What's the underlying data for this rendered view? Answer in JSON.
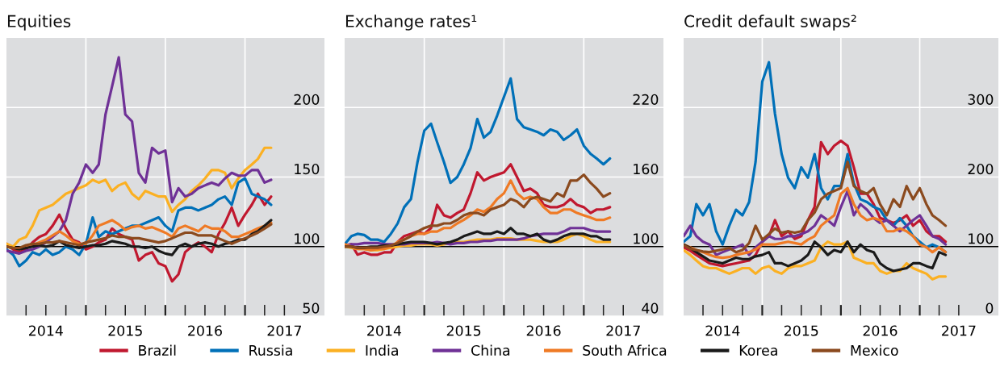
{
  "chart_data": [
    {
      "type": "line",
      "title": "Equities",
      "xlim": [
        "2014-01-01",
        "2018-01-01"
      ],
      "ylim": [
        50,
        250
      ],
      "yticks": [
        50,
        100,
        150,
        200
      ],
      "grid": true,
      "legend": "bottom",
      "line_style": "solid",
      "xticks": [
        {
          "value": "2014-04-01",
          "label": null
        },
        {
          "value": "2014-07-01",
          "label": "2014"
        },
        {
          "value": "2014-10-01",
          "label": null
        },
        {
          "value": "2015-01-01",
          "label": null
        },
        {
          "value": "2015-04-01",
          "label": null
        },
        {
          "value": "2015-07-01",
          "label": "2015"
        },
        {
          "value": "2015-10-01",
          "label": null
        },
        {
          "value": "2016-01-01",
          "label": null
        },
        {
          "value": "2016-04-01",
          "label": null
        },
        {
          "value": "2016-07-01",
          "label": "2016"
        },
        {
          "value": "2016-10-01",
          "label": null
        },
        {
          "value": "2017-01-01",
          "label": null
        },
        {
          "value": "2017-04-01",
          "label": null
        },
        {
          "value": "2017-07-01",
          "label": "2017"
        }
      ],
      "ref_lines": [
        {
          "axis": "y",
          "value": 100,
          "color": "#000000"
        }
      ],
      "x": [
        "2014-01",
        "2014-02",
        "2014-03",
        "2014-04",
        "2014-05",
        "2014-06",
        "2014-07",
        "2014-08",
        "2014-09",
        "2014-10",
        "2014-11",
        "2014-12",
        "2015-01",
        "2015-02",
        "2015-03",
        "2015-04",
        "2015-05",
        "2015-06",
        "2015-07",
        "2015-08",
        "2015-09",
        "2015-10",
        "2015-11",
        "2015-12",
        "2016-01",
        "2016-02",
        "2016-03",
        "2016-04",
        "2016-05",
        "2016-06",
        "2016-07",
        "2016-08",
        "2016-09",
        "2016-10",
        "2016-11",
        "2016-12",
        "2017-01",
        "2017-02",
        "2017-03",
        "2017-04",
        "2017-05"
      ],
      "series": [
        {
          "name": "Brazil",
          "color": "#c0182f",
          "values": [
            102,
            98,
            96,
            98,
            103,
            107,
            109,
            115,
            123,
            113,
            105,
            103,
            98,
            100,
            103,
            105,
            113,
            109,
            107,
            105,
            90,
            94,
            96,
            88,
            86,
            75,
            80,
            96,
            100,
            103,
            100,
            96,
            109,
            117,
            128,
            115,
            123,
            130,
            138,
            130,
            136
          ]
        },
        {
          "name": "Russia",
          "color": "#0070b8",
          "values": [
            98,
            94,
            86,
            90,
            96,
            94,
            98,
            94,
            96,
            100,
            98,
            94,
            102,
            121,
            107,
            111,
            109,
            111,
            113,
            115,
            115,
            117,
            119,
            121,
            115,
            111,
            126,
            128,
            128,
            126,
            128,
            130,
            134,
            136,
            130,
            146,
            149,
            138,
            136,
            134,
            130
          ]
        },
        {
          "name": "India",
          "color": "#fbb022",
          "values": [
            102,
            100,
            105,
            107,
            115,
            126,
            128,
            130,
            134,
            138,
            140,
            142,
            144,
            148,
            146,
            148,
            140,
            144,
            146,
            138,
            134,
            140,
            138,
            136,
            136,
            125,
            130,
            134,
            140,
            144,
            149,
            155,
            155,
            153,
            142,
            149,
            155,
            159,
            163,
            171,
            171
          ]
        },
        {
          "name": "China",
          "color": "#6f3196",
          "values": [
            97,
            96,
            95,
            97,
            98,
            100,
            103,
            107,
            111,
            119,
            138,
            146,
            159,
            153,
            159,
            195,
            215,
            236,
            195,
            190,
            153,
            146,
            171,
            167,
            169,
            132,
            142,
            136,
            138,
            142,
            144,
            146,
            144,
            149,
            153,
            151,
            151,
            155,
            155,
            146,
            148
          ]
        },
        {
          "name": "South Africa",
          "color": "#ef7a25",
          "values": [
            100,
            99,
            98,
            100,
            101,
            103,
            105,
            108,
            111,
            108,
            104,
            102,
            102,
            108,
            115,
            117,
            119,
            116,
            112,
            114,
            115,
            113,
            114,
            112,
            110,
            107,
            113,
            115,
            113,
            111,
            115,
            113,
            113,
            111,
            107,
            107,
            109,
            111,
            113,
            115,
            117
          ]
        },
        {
          "name": "Korea",
          "color": "#1a1a1a",
          "values": [
            100,
            99,
            98,
            99,
            100,
            101,
            100,
            101,
            104,
            101,
            100,
            99,
            100,
            101,
            101,
            102,
            104,
            103,
            102,
            100,
            100,
            99,
            100,
            97,
            95,
            94,
            100,
            102,
            100,
            102,
            103,
            102,
            100,
            102,
            103,
            105,
            105,
            109,
            111,
            115,
            119
          ]
        },
        {
          "name": "Mexico",
          "color": "#8b4a1e",
          "values": [
            100,
            99,
            99,
            101,
            102,
            102,
            103,
            103,
            104,
            103,
            102,
            101,
            103,
            104,
            105,
            106,
            108,
            107,
            107,
            106,
            106,
            105,
            104,
            103,
            104,
            106,
            108,
            110,
            110,
            108,
            108,
            108,
            106,
            104,
            102,
            104,
            106,
            108,
            110,
            113,
            116
          ]
        }
      ]
    },
    {
      "type": "line",
      "title": "Exchange rates¹",
      "xlim": [
        "2014-01-01",
        "2018-01-01"
      ],
      "ylim": [
        40,
        280
      ],
      "yticks": [
        40,
        100,
        160,
        220
      ],
      "grid": true,
      "legend": "bottom",
      "line_style": "solid",
      "xticks": [
        {
          "value": "2014-04-01",
          "label": null
        },
        {
          "value": "2014-07-01",
          "label": "2014"
        },
        {
          "value": "2014-10-01",
          "label": null
        },
        {
          "value": "2015-01-01",
          "label": null
        },
        {
          "value": "2015-04-01",
          "label": null
        },
        {
          "value": "2015-07-01",
          "label": "2015"
        },
        {
          "value": "2015-10-01",
          "label": null
        },
        {
          "value": "2016-01-01",
          "label": null
        },
        {
          "value": "2016-04-01",
          "label": null
        },
        {
          "value": "2016-07-01",
          "label": "2016"
        },
        {
          "value": "2016-10-01",
          "label": null
        },
        {
          "value": "2017-01-01",
          "label": null
        },
        {
          "value": "2017-04-01",
          "label": null
        },
        {
          "value": "2017-07-01",
          "label": "2017"
        }
      ],
      "ref_lines": [
        {
          "axis": "y",
          "value": 100,
          "color": "#000000"
        }
      ],
      "x": [
        "2014-01",
        "2014-02",
        "2014-03",
        "2014-04",
        "2014-05",
        "2014-06",
        "2014-07",
        "2014-08",
        "2014-09",
        "2014-10",
        "2014-11",
        "2014-12",
        "2015-01",
        "2015-02",
        "2015-03",
        "2015-04",
        "2015-05",
        "2015-06",
        "2015-07",
        "2015-08",
        "2015-09",
        "2015-10",
        "2015-11",
        "2015-12",
        "2016-01",
        "2016-02",
        "2016-03",
        "2016-04",
        "2016-05",
        "2016-06",
        "2016-07",
        "2016-08",
        "2016-09",
        "2016-10",
        "2016-11",
        "2016-12",
        "2017-01",
        "2017-02",
        "2017-03",
        "2017-04",
        "2017-05"
      ],
      "series": [
        {
          "name": "Brazil",
          "color": "#c0182f",
          "values": [
            100,
            102,
            93,
            95,
            93,
            93,
            95,
            95,
            104,
            109,
            111,
            113,
            111,
            116,
            136,
            127,
            125,
            129,
            132,
            146,
            164,
            157,
            160,
            162,
            164,
            171,
            160,
            148,
            150,
            146,
            136,
            134,
            134,
            136,
            141,
            136,
            134,
            129,
            132,
            132,
            134
          ]
        },
        {
          "name": "Russia",
          "color": "#0070b8",
          "values": [
            102,
            109,
            111,
            110,
            106,
            106,
            104,
            111,
            120,
            134,
            141,
            173,
            200,
            206,
            190,
            173,
            155,
            160,
            171,
            185,
            210,
            194,
            199,
            213,
            229,
            245,
            210,
            203,
            201,
            199,
            196,
            201,
            199,
            192,
            196,
            201,
            187,
            180,
            176,
            171,
            176
          ]
        },
        {
          "name": "India",
          "color": "#fbb022",
          "values": [
            100,
            99,
            98,
            98,
            97,
            97,
            98,
            99,
            100,
            101,
            101,
            102,
            102,
            102,
            101,
            102,
            103,
            104,
            104,
            105,
            106,
            106,
            106,
            107,
            107,
            107,
            106,
            106,
            106,
            105,
            104,
            104,
            104,
            106,
            109,
            111,
            109,
            106,
            104,
            104,
            104
          ]
        },
        {
          "name": "China",
          "color": "#6f3196",
          "values": [
            101,
            102,
            102,
            103,
            103,
            103,
            102,
            102,
            102,
            102,
            103,
            103,
            103,
            103,
            104,
            103,
            102,
            103,
            103,
            104,
            104,
            105,
            105,
            106,
            106,
            106,
            106,
            107,
            109,
            110,
            111,
            111,
            111,
            113,
            116,
            116,
            116,
            114,
            113,
            113,
            113
          ]
        },
        {
          "name": "South Africa",
          "color": "#ef7a25",
          "values": [
            102,
            100,
            98,
            98,
            97,
            98,
            98,
            100,
            104,
            106,
            109,
            111,
            111,
            113,
            113,
            116,
            116,
            120,
            123,
            127,
            132,
            130,
            134,
            141,
            146,
            157,
            146,
            141,
            143,
            141,
            134,
            129,
            129,
            132,
            132,
            129,
            127,
            125,
            123,
            123,
            125
          ]
        },
        {
          "name": "Korea",
          "color": "#1a1a1a",
          "values": [
            100,
            100,
            99,
            99,
            100,
            100,
            101,
            101,
            102,
            103,
            104,
            104,
            104,
            103,
            102,
            103,
            104,
            106,
            109,
            111,
            113,
            111,
            111,
            113,
            111,
            116,
            111,
            111,
            109,
            111,
            106,
            104,
            106,
            109,
            111,
            111,
            111,
            109,
            109,
            106,
            106
          ]
        },
        {
          "name": "Mexico",
          "color": "#8b4a1e",
          "values": [
            100,
            100,
            99,
            99,
            99,
            99,
            100,
            101,
            103,
            106,
            109,
            113,
            116,
            118,
            118,
            120,
            120,
            123,
            127,
            129,
            129,
            127,
            132,
            134,
            136,
            141,
            139,
            134,
            141,
            143,
            141,
            139,
            146,
            143,
            157,
            157,
            162,
            155,
            150,
            143,
            146
          ]
        }
      ]
    },
    {
      "type": "line",
      "title": "Credit default swaps²",
      "xlim": [
        "2014-01-01",
        "2018-01-01"
      ],
      "ylim": [
        0,
        400
      ],
      "yticks": [
        0,
        100,
        200,
        300
      ],
      "grid": true,
      "legend": "bottom",
      "line_style": "solid",
      "xticks": [
        {
          "value": "2014-04-01",
          "label": null
        },
        {
          "value": "2014-07-01",
          "label": "2014"
        },
        {
          "value": "2014-10-01",
          "label": null
        },
        {
          "value": "2015-01-01",
          "label": null
        },
        {
          "value": "2015-04-01",
          "label": null
        },
        {
          "value": "2015-07-01",
          "label": "2015"
        },
        {
          "value": "2015-10-01",
          "label": null
        },
        {
          "value": "2016-01-01",
          "label": null
        },
        {
          "value": "2016-04-01",
          "label": null
        },
        {
          "value": "2016-07-01",
          "label": "2016"
        },
        {
          "value": "2016-10-01",
          "label": null
        },
        {
          "value": "2017-01-01",
          "label": null
        },
        {
          "value": "2017-04-01",
          "label": null
        },
        {
          "value": "2017-07-01",
          "label": "2017"
        }
      ],
      "ref_lines": [
        {
          "axis": "y",
          "value": 100,
          "color": "#000000"
        }
      ],
      "x": [
        "2014-01",
        "2014-02",
        "2014-03",
        "2014-04",
        "2014-05",
        "2014-06",
        "2014-07",
        "2014-08",
        "2014-09",
        "2014-10",
        "2014-11",
        "2014-12",
        "2015-01",
        "2015-02",
        "2015-03",
        "2015-04",
        "2015-05",
        "2015-06",
        "2015-07",
        "2015-08",
        "2015-09",
        "2015-10",
        "2015-11",
        "2015-12",
        "2016-01",
        "2016-02",
        "2016-03",
        "2016-04",
        "2016-05",
        "2016-06",
        "2016-07",
        "2016-08",
        "2016-09",
        "2016-10",
        "2016-11",
        "2016-12",
        "2017-01",
        "2017-02",
        "2017-03",
        "2017-04",
        "2017-05"
      ],
      "series": [
        {
          "name": "Brazil",
          "color": "#c0182f",
          "values": [
            99,
            94,
            88,
            82,
            76,
            74,
            72,
            74,
            76,
            78,
            80,
            88,
            107,
            115,
            138,
            115,
            122,
            111,
            115,
            138,
            157,
            250,
            233,
            245,
            252,
            245,
            214,
            176,
            176,
            161,
            141,
            138,
            134,
            138,
            145,
            130,
            138,
            122,
            115,
            115,
            107
          ]
        },
        {
          "name": "Russia",
          "color": "#0070b8",
          "values": [
            107,
            115,
            161,
            145,
            161,
            122,
            103,
            130,
            153,
            145,
            164,
            222,
            337,
            365,
            291,
            233,
            199,
            184,
            214,
            199,
            233,
            184,
            168,
            187,
            187,
            233,
            191,
            168,
            164,
            157,
            153,
            138,
            130,
            141,
            130,
            115,
            107,
            99,
            103,
            99,
            92
          ]
        },
        {
          "name": "India",
          "color": "#fbb022",
          "values": [
            95,
            88,
            80,
            72,
            69,
            69,
            65,
            61,
            65,
            69,
            69,
            61,
            69,
            72,
            65,
            61,
            69,
            72,
            72,
            76,
            80,
            99,
            107,
            103,
            103,
            107,
            84,
            80,
            76,
            76,
            65,
            61,
            65,
            65,
            76,
            69,
            65,
            61,
            53,
            57,
            57
          ]
        },
        {
          "name": "China",
          "color": "#6f3196",
          "values": [
            115,
            130,
            115,
            107,
            103,
            88,
            92,
            96,
            99,
            103,
            88,
            99,
            107,
            115,
            111,
            111,
            115,
            115,
            118,
            122,
            130,
            145,
            138,
            130,
            157,
            180,
            145,
            161,
            153,
            141,
            134,
            138,
            130,
            122,
            130,
            138,
            145,
            130,
            115,
            111,
            103
          ]
        },
        {
          "name": "South Africa",
          "color": "#ef7a25",
          "values": [
            103,
            99,
            95,
            92,
            88,
            85,
            84,
            85,
            88,
            90,
            92,
            96,
            103,
            103,
            103,
            105,
            107,
            105,
            103,
            110,
            115,
            130,
            138,
            145,
            176,
            184,
            161,
            145,
            138,
            141,
            138,
            122,
            122,
            126,
            122,
            115,
            103,
            99,
            92,
            99,
            92
          ]
        },
        {
          "name": "Korea",
          "color": "#1a1a1a",
          "values": [
            103,
            98,
            92,
            86,
            80,
            78,
            76,
            80,
            84,
            82,
            82,
            86,
            88,
            92,
            76,
            76,
            72,
            76,
            80,
            88,
            107,
            99,
            88,
            95,
            92,
            107,
            92,
            103,
            95,
            92,
            76,
            69,
            65,
            67,
            69,
            76,
            76,
            72,
            69,
            92,
            88
          ]
        },
        {
          "name": "Mexico",
          "color": "#8b4a1e",
          "values": [
            102,
            97,
            95,
            93,
            92,
            94,
            96,
            98,
            92,
            95,
            105,
            130,
            110,
            118,
            126,
            120,
            122,
            120,
            122,
            138,
            149,
            168,
            176,
            180,
            184,
            222,
            187,
            180,
            176,
            184,
            161,
            145,
            168,
            157,
            187,
            168,
            184,
            161,
            145,
            138,
            130
          ]
        }
      ]
    }
  ]
}
